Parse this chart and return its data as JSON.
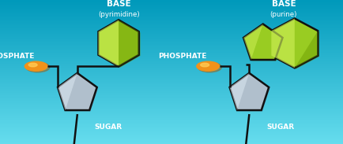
{
  "bg_grad_top": "#0099BB",
  "bg_grad_bottom": "#66DDEE",
  "line_color": "#111111",
  "line_width": 1.8,
  "phosphate_color": "#F0921A",
  "phosphate_highlight": "#FFCC55",
  "phosphate_shadow": "#AA5500",
  "sugar_color": "#B0BFCC",
  "sugar_light": "#D8E4EE",
  "sugar_shadow": "#7788AA",
  "base_main": "#99CC22",
  "base_light": "#CCEE55",
  "base_dark": "#557A00",
  "base_side": "#6A9900",
  "text_color": "white",
  "label_base": "BASE",
  "label_pyrimidine": "(pyrimidine)",
  "label_purine": "(purine)",
  "label_phosphate": "PHOSPHATE",
  "label_sugar": "SUGAR",
  "font_base": 7.5,
  "font_sub": 6.2,
  "font_label": 6.5
}
